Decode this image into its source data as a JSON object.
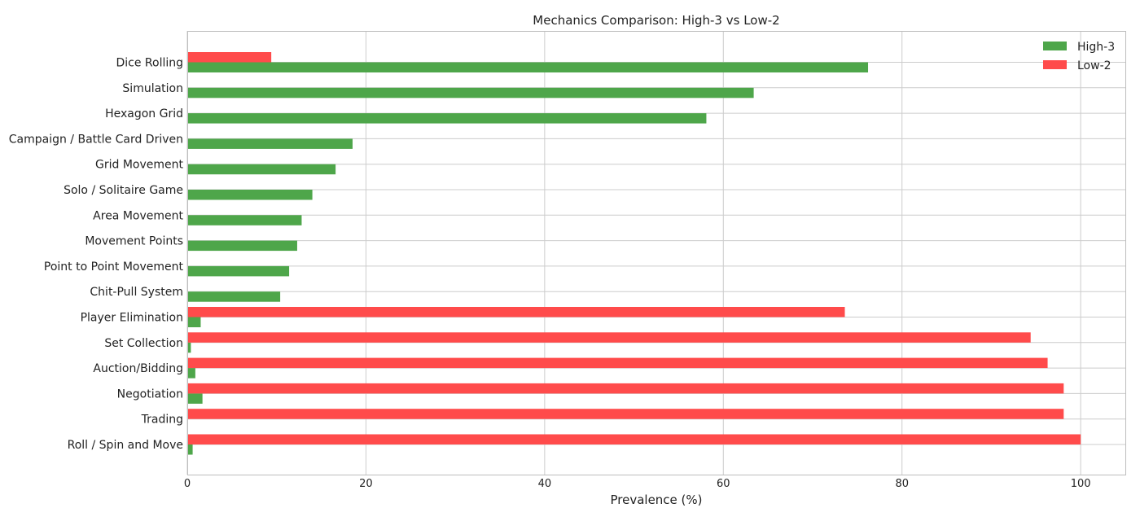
{
  "chart_data": {
    "type": "bar",
    "orientation": "horizontal",
    "title": "Mechanics Comparison: High-3 vs Low-2",
    "xlabel": "Prevalence (%)",
    "ylabel": "",
    "xlim": [
      0,
      105
    ],
    "xticks": [
      "0",
      "20",
      "40",
      "60",
      "80",
      "100"
    ],
    "grid": true,
    "legend_position": "top-right",
    "categories": [
      "Dice Rolling",
      "Simulation",
      "Hexagon Grid",
      "Campaign / Battle Card Driven",
      "Grid Movement",
      "Solo / Solitaire Game",
      "Area Movement",
      "Movement Points",
      "Point to Point Movement",
      "Chit-Pull System",
      "Player Elimination",
      "Set Collection",
      "Auction/Bidding",
      "Negotiation",
      "Trading",
      "Roll / Spin and Move"
    ],
    "series": [
      {
        "name": "High-3",
        "color": "#4ea64a",
        "values": [
          76.2,
          63.4,
          58.1,
          18.5,
          16.6,
          14.0,
          12.8,
          12.3,
          11.4,
          10.4,
          1.5,
          0.4,
          0.9,
          1.7,
          0.0,
          0.6
        ]
      },
      {
        "name": "Low-2",
        "color": "#ff4b4b",
        "values": [
          9.4,
          0.0,
          0.0,
          0.0,
          0.0,
          0.0,
          0.0,
          0.0,
          0.0,
          0.0,
          73.6,
          94.4,
          96.3,
          98.1,
          98.1,
          100.0
        ]
      }
    ]
  }
}
